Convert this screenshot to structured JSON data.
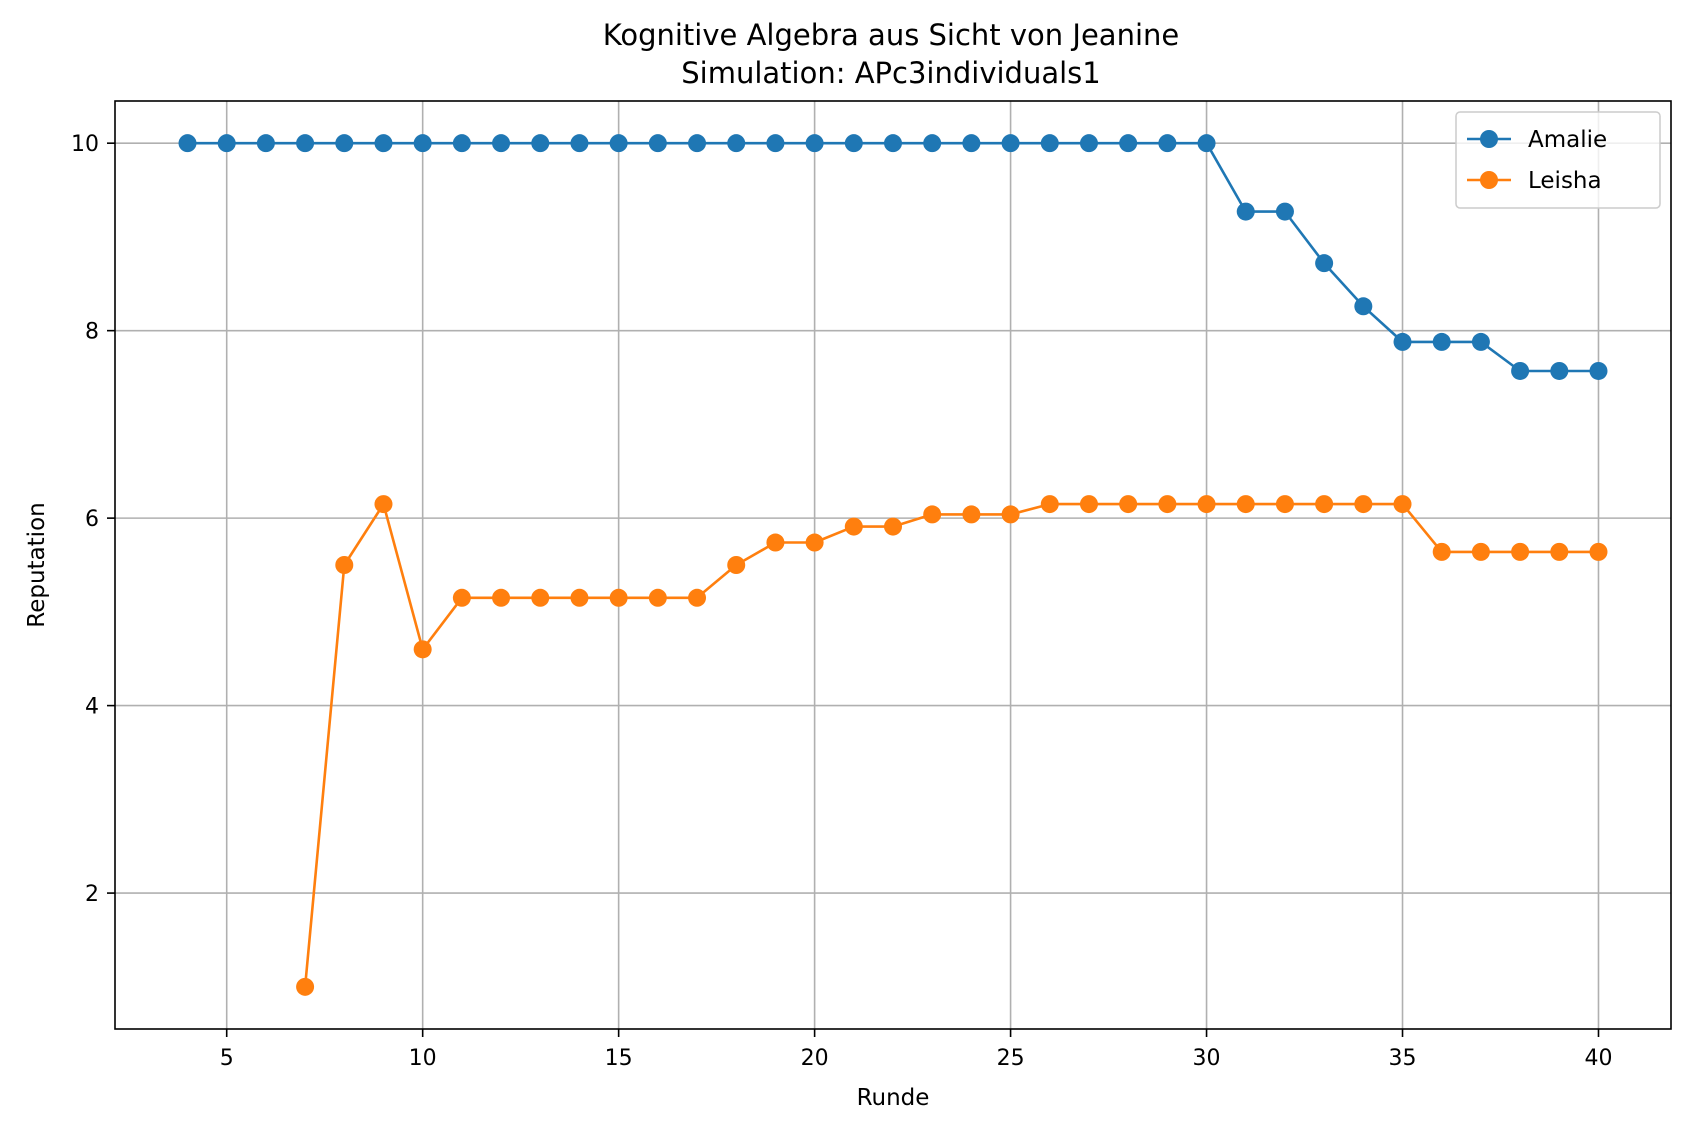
{
  "chart_data": {
    "type": "line",
    "title": "Kognitive Algebra aus Sicht von Jeanine",
    "subtitle": "Simulation: APc3individuals1",
    "xlabel": "Runde",
    "ylabel": "Reputation",
    "xlim": [
      2.15,
      41.85
    ],
    "ylim": [
      0.55,
      10.45
    ],
    "xticks": [
      5,
      10,
      15,
      20,
      25,
      30,
      35,
      40
    ],
    "yticks": [
      2,
      4,
      6,
      8,
      10
    ],
    "grid": true,
    "legend": "top-right",
    "colors": {
      "Amalie": "#1f77b4",
      "Leisha": "#ff7f0e"
    },
    "series": [
      {
        "name": "Amalie",
        "x": [
          4,
          5,
          6,
          7,
          8,
          9,
          10,
          11,
          12,
          13,
          14,
          15,
          16,
          17,
          18,
          19,
          20,
          21,
          22,
          23,
          24,
          25,
          26,
          27,
          28,
          29,
          30,
          31,
          32,
          33,
          34,
          35,
          36,
          37,
          38,
          39,
          40
        ],
        "y": [
          10,
          10,
          10,
          10,
          10,
          10,
          10,
          10,
          10,
          10,
          10,
          10,
          10,
          10,
          10,
          10,
          10,
          10,
          10,
          10,
          10,
          10,
          10,
          10,
          10,
          10,
          10,
          9.27,
          9.27,
          8.72,
          8.26,
          7.88,
          7.88,
          7.88,
          7.57,
          7.57,
          7.57
        ]
      },
      {
        "name": "Leisha",
        "x": [
          7,
          8,
          9,
          10,
          11,
          12,
          13,
          14,
          15,
          16,
          17,
          18,
          19,
          20,
          21,
          22,
          23,
          24,
          25,
          26,
          27,
          28,
          29,
          30,
          31,
          32,
          33,
          34,
          35,
          36,
          37,
          38,
          39,
          40
        ],
        "y": [
          1.0,
          5.5,
          6.15,
          4.6,
          5.15,
          5.15,
          5.15,
          5.15,
          5.15,
          5.15,
          5.15,
          5.5,
          5.74,
          5.74,
          5.91,
          5.91,
          6.04,
          6.04,
          6.04,
          6.15,
          6.15,
          6.15,
          6.15,
          6.15,
          6.15,
          6.15,
          6.15,
          6.15,
          6.15,
          5.64,
          5.64,
          5.64,
          5.64,
          5.64
        ]
      }
    ]
  }
}
